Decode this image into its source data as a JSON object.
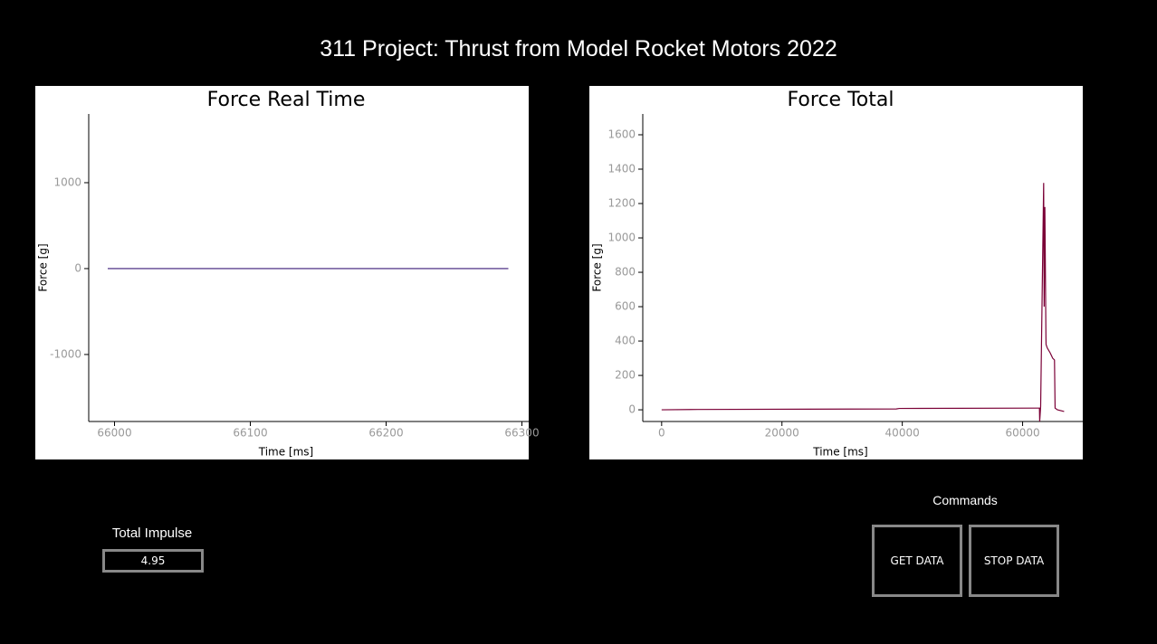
{
  "title": "311 Project: Thrust from Model Rocket Motors 2022",
  "chart_data": [
    {
      "type": "line",
      "title": "Force Real Time",
      "x_label": "Time [ms]",
      "y_label": "Force [g]",
      "x": [
        65995,
        66290
      ],
      "values": [
        0,
        0
      ],
      "color": "#3b1a78",
      "xlim": [
        65981,
        66305
      ],
      "ylim": [
        -1780,
        1800
      ],
      "xticks": [
        66000,
        66100,
        66200,
        66300
      ],
      "yticks": [
        -1000,
        0,
        1000
      ]
    },
    {
      "type": "line",
      "title": "Force Total",
      "x_label": "Time [ms]",
      "y_label": "Force [g]",
      "x": [
        0,
        6000,
        39000,
        39500,
        62800,
        62840,
        63000,
        63500,
        63580,
        63700,
        63880,
        63900,
        64100,
        64600,
        65000,
        65300,
        65400,
        65800,
        66900
      ],
      "values": [
        0,
        2,
        5,
        8,
        10,
        -68,
        20,
        1320,
        600,
        1180,
        420,
        380,
        360,
        330,
        300,
        290,
        10,
        0,
        -10
      ],
      "color": "#7a0036",
      "xlim": [
        -3134,
        70150
      ],
      "ylim": [
        -68,
        1721
      ],
      "xticks": [
        0,
        20000,
        40000,
        60000
      ],
      "yticks": [
        0,
        200,
        400,
        600,
        800,
        1000,
        1200,
        1400,
        1600
      ]
    }
  ],
  "impulse": {
    "label": "Total Impulse",
    "value": "4.95"
  },
  "commands": {
    "label": "Commands",
    "buttons": [
      "GET DATA",
      "STOP DATA"
    ]
  }
}
